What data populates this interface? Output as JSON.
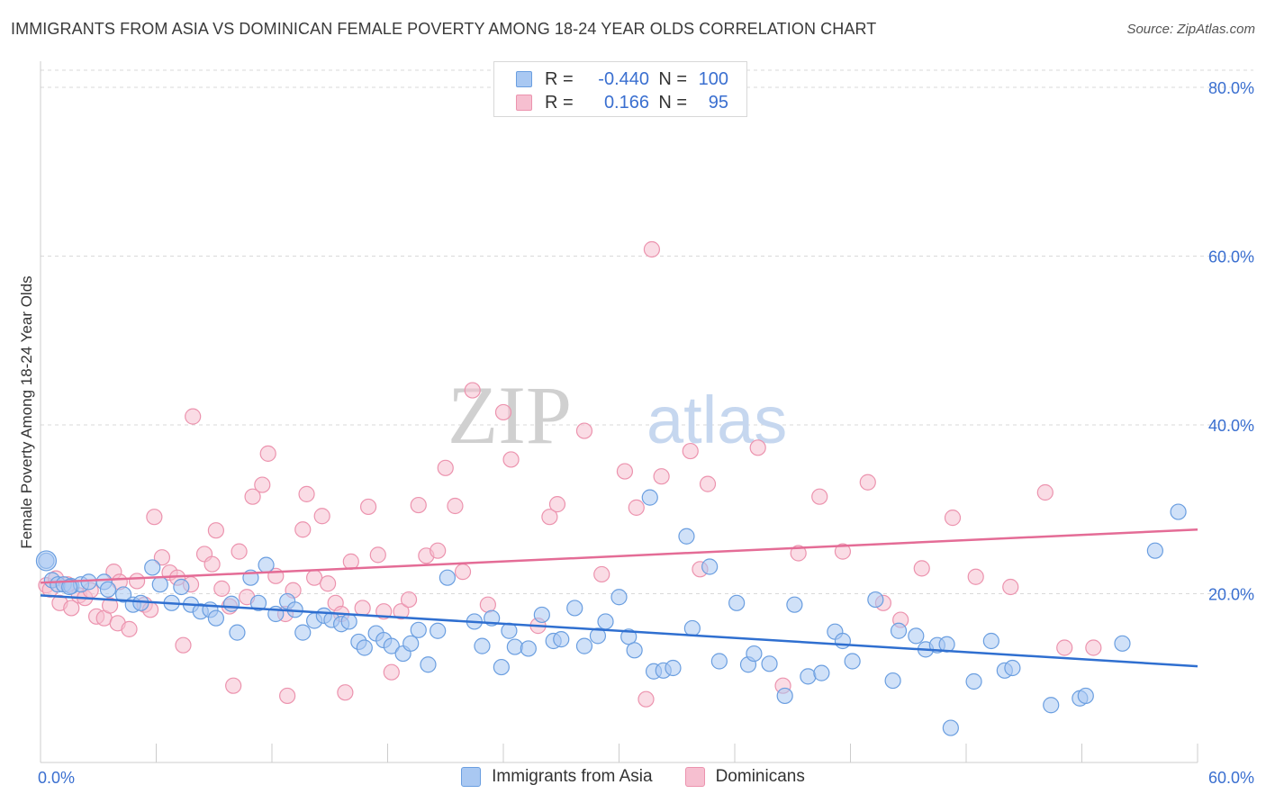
{
  "header": {
    "title": "IMMIGRANTS FROM ASIA VS DOMINICAN FEMALE POVERTY AMONG 18-24 YEAR OLDS CORRELATION CHART",
    "source": "Source: ZipAtlas.com"
  },
  "watermark": {
    "zip": "ZIP",
    "atlas": "atlas"
  },
  "legend": {
    "rows": [
      {
        "r_label": "R =",
        "r_value": "-0.440",
        "n_label": "N =",
        "n_value": "100"
      },
      {
        "r_label": "R =",
        "r_value": "0.166",
        "n_label": "N =",
        "n_value": "95"
      }
    ]
  },
  "bottom_legend": {
    "asia": "Immigrants from Asia",
    "dominicans": "Dominicans"
  },
  "colors": {
    "asia_fill": "#a9c8f2",
    "asia_stroke": "#6a9ee0",
    "asia_line": "#2f6fd0",
    "dom_fill": "#f6bfd0",
    "dom_stroke": "#ec93ae",
    "dom_line": "#e46c96",
    "tick_text": "#3a6fd0",
    "grid": "#d9d9d9"
  },
  "chart_data": {
    "type": "scatter",
    "title": "IMMIGRANTS FROM ASIA VS DOMINICAN FEMALE POVERTY AMONG 18-24 YEAR OLDS CORRELATION CHART",
    "xlabel": "",
    "ylabel": "Female Poverty Among 18-24 Year Olds",
    "xlim": [
      0,
      60
    ],
    "ylim": [
      0,
      80
    ],
    "x_tick_labels": [
      "0.0%",
      "60.0%"
    ],
    "y_tick_labels": [
      "20.0%",
      "40.0%",
      "60.0%",
      "80.0%"
    ],
    "y_ticks": [
      20,
      40,
      60,
      80
    ],
    "grid": "horizontal dashed",
    "legend_position": "top-center",
    "series": [
      {
        "name": "Immigrants from Asia",
        "r": -0.44,
        "n": 100,
        "trend": {
          "x": [
            0,
            60
          ],
          "y": [
            19.8,
            11.4
          ]
        },
        "points": [
          [
            0.3,
            23.9
          ],
          [
            0.6,
            21.6
          ],
          [
            0.9,
            21.1
          ],
          [
            1.2,
            21.1
          ],
          [
            1.6,
            20.9
          ],
          [
            2.1,
            21.1
          ],
          [
            2.5,
            21.4
          ],
          [
            3.3,
            21.4
          ],
          [
            3.5,
            20.5
          ],
          [
            4.3,
            19.9
          ],
          [
            4.8,
            18.7
          ],
          [
            5.2,
            18.9
          ],
          [
            5.8,
            23.1
          ],
          [
            6.2,
            21.1
          ],
          [
            6.8,
            18.9
          ],
          [
            7.3,
            20.8
          ],
          [
            7.8,
            18.7
          ],
          [
            8.3,
            17.9
          ],
          [
            8.8,
            18.1
          ],
          [
            9.1,
            17.1
          ],
          [
            9.9,
            18.8
          ],
          [
            10.2,
            15.4
          ],
          [
            10.9,
            21.9
          ],
          [
            11.3,
            18.9
          ],
          [
            11.7,
            23.4
          ],
          [
            12.2,
            17.6
          ],
          [
            12.8,
            19.1
          ],
          [
            13.2,
            18.1
          ],
          [
            13.6,
            15.4
          ],
          [
            14.2,
            16.8
          ],
          [
            14.7,
            17.4
          ],
          [
            15.1,
            16.9
          ],
          [
            15.6,
            16.4
          ],
          [
            16.0,
            16.7
          ],
          [
            16.5,
            14.3
          ],
          [
            16.8,
            13.6
          ],
          [
            17.4,
            15.3
          ],
          [
            17.8,
            14.5
          ],
          [
            18.2,
            13.8
          ],
          [
            18.8,
            12.9
          ],
          [
            19.2,
            14.1
          ],
          [
            19.6,
            15.7
          ],
          [
            20.1,
            11.6
          ],
          [
            20.6,
            15.6
          ],
          [
            21.1,
            21.9
          ],
          [
            22.5,
            16.7
          ],
          [
            22.9,
            13.8
          ],
          [
            23.4,
            17.1
          ],
          [
            23.9,
            11.3
          ],
          [
            24.3,
            15.6
          ],
          [
            24.6,
            13.7
          ],
          [
            25.3,
            13.5
          ],
          [
            26.0,
            17.5
          ],
          [
            26.6,
            14.4
          ],
          [
            27.0,
            14.6
          ],
          [
            27.7,
            18.3
          ],
          [
            28.2,
            13.8
          ],
          [
            28.9,
            15.0
          ],
          [
            29.3,
            16.7
          ],
          [
            30.0,
            19.6
          ],
          [
            30.5,
            14.9
          ],
          [
            30.8,
            13.3
          ],
          [
            31.8,
            10.8
          ],
          [
            32.3,
            10.9
          ],
          [
            32.8,
            11.2
          ],
          [
            33.5,
            26.8
          ],
          [
            33.8,
            15.9
          ],
          [
            34.7,
            23.2
          ],
          [
            35.2,
            12.0
          ],
          [
            36.1,
            18.9
          ],
          [
            36.7,
            11.6
          ],
          [
            37.0,
            12.9
          ],
          [
            37.8,
            11.7
          ],
          [
            38.6,
            7.9
          ],
          [
            39.1,
            18.7
          ],
          [
            39.8,
            10.2
          ],
          [
            40.5,
            10.6
          ],
          [
            41.2,
            15.5
          ],
          [
            41.6,
            14.4
          ],
          [
            42.1,
            12.0
          ],
          [
            43.3,
            19.3
          ],
          [
            44.2,
            9.7
          ],
          [
            44.5,
            15.6
          ],
          [
            45.4,
            15.0
          ],
          [
            45.9,
            13.4
          ],
          [
            46.5,
            13.9
          ],
          [
            47.0,
            14.0
          ],
          [
            47.2,
            4.1
          ],
          [
            48.4,
            9.6
          ],
          [
            49.3,
            14.4
          ],
          [
            50.0,
            10.9
          ],
          [
            50.4,
            11.2
          ],
          [
            52.4,
            6.8
          ],
          [
            53.9,
            7.6
          ],
          [
            54.2,
            7.9
          ],
          [
            56.1,
            14.1
          ],
          [
            57.8,
            25.1
          ],
          [
            59.0,
            29.7
          ],
          [
            31.6,
            31.4
          ],
          [
            1.5,
            20.8
          ]
        ]
      },
      {
        "name": "Dominicans",
        "r": 0.166,
        "n": 95,
        "trend": {
          "x": [
            0,
            60
          ],
          "y": [
            21.3,
            27.6
          ]
        },
        "points": [
          [
            0.3,
            21.0
          ],
          [
            0.8,
            21.8
          ],
          [
            1.0,
            18.9
          ],
          [
            1.4,
            21.1
          ],
          [
            1.6,
            18.3
          ],
          [
            2.0,
            19.8
          ],
          [
            2.3,
            19.5
          ],
          [
            2.6,
            20.4
          ],
          [
            2.9,
            17.3
          ],
          [
            3.3,
            17.1
          ],
          [
            3.6,
            18.6
          ],
          [
            3.8,
            22.6
          ],
          [
            4.0,
            16.5
          ],
          [
            4.6,
            15.8
          ],
          [
            5.0,
            21.5
          ],
          [
            5.4,
            18.7
          ],
          [
            5.7,
            18.1
          ],
          [
            5.9,
            29.1
          ],
          [
            6.3,
            24.3
          ],
          [
            6.7,
            22.5
          ],
          [
            7.1,
            21.9
          ],
          [
            7.4,
            13.9
          ],
          [
            7.8,
            21.1
          ],
          [
            7.9,
            41.0
          ],
          [
            8.5,
            24.7
          ],
          [
            8.9,
            23.5
          ],
          [
            9.1,
            27.5
          ],
          [
            9.4,
            20.6
          ],
          [
            9.8,
            18.5
          ],
          [
            10.0,
            9.1
          ],
          [
            10.3,
            25.0
          ],
          [
            10.7,
            19.6
          ],
          [
            11.0,
            31.5
          ],
          [
            11.5,
            32.9
          ],
          [
            11.8,
            36.6
          ],
          [
            12.2,
            22.1
          ],
          [
            12.7,
            17.6
          ],
          [
            12.8,
            7.9
          ],
          [
            13.1,
            20.4
          ],
          [
            13.6,
            27.6
          ],
          [
            13.8,
            31.8
          ],
          [
            14.2,
            21.9
          ],
          [
            14.6,
            29.2
          ],
          [
            14.9,
            21.2
          ],
          [
            15.3,
            18.9
          ],
          [
            15.6,
            17.6
          ],
          [
            15.8,
            8.3
          ],
          [
            16.1,
            23.8
          ],
          [
            16.7,
            18.3
          ],
          [
            17.0,
            30.3
          ],
          [
            17.5,
            24.6
          ],
          [
            17.8,
            17.9
          ],
          [
            18.2,
            10.7
          ],
          [
            18.7,
            17.9
          ],
          [
            19.1,
            19.3
          ],
          [
            19.6,
            30.5
          ],
          [
            20.0,
            24.5
          ],
          [
            20.6,
            25.1
          ],
          [
            21.0,
            34.9
          ],
          [
            21.5,
            30.4
          ],
          [
            21.9,
            22.6
          ],
          [
            22.4,
            44.1
          ],
          [
            23.2,
            18.7
          ],
          [
            24.0,
            41.5
          ],
          [
            24.4,
            35.9
          ],
          [
            25.8,
            16.2
          ],
          [
            26.4,
            29.1
          ],
          [
            26.8,
            30.6
          ],
          [
            28.2,
            39.3
          ],
          [
            29.1,
            22.3
          ],
          [
            30.3,
            34.5
          ],
          [
            30.9,
            30.2
          ],
          [
            31.4,
            7.5
          ],
          [
            31.7,
            60.8
          ],
          [
            32.2,
            33.9
          ],
          [
            33.7,
            36.9
          ],
          [
            34.2,
            22.9
          ],
          [
            34.6,
            33.0
          ],
          [
            37.2,
            37.3
          ],
          [
            38.5,
            9.1
          ],
          [
            39.3,
            24.8
          ],
          [
            40.4,
            31.5
          ],
          [
            41.6,
            25.0
          ],
          [
            42.9,
            33.2
          ],
          [
            43.7,
            18.9
          ],
          [
            44.6,
            16.9
          ],
          [
            45.7,
            23.0
          ],
          [
            47.3,
            29.0
          ],
          [
            48.5,
            22.0
          ],
          [
            50.3,
            20.8
          ],
          [
            52.1,
            32.0
          ],
          [
            53.1,
            13.6
          ],
          [
            54.6,
            13.6
          ],
          [
            4.1,
            21.4
          ],
          [
            0.5,
            20.5
          ]
        ]
      }
    ]
  }
}
